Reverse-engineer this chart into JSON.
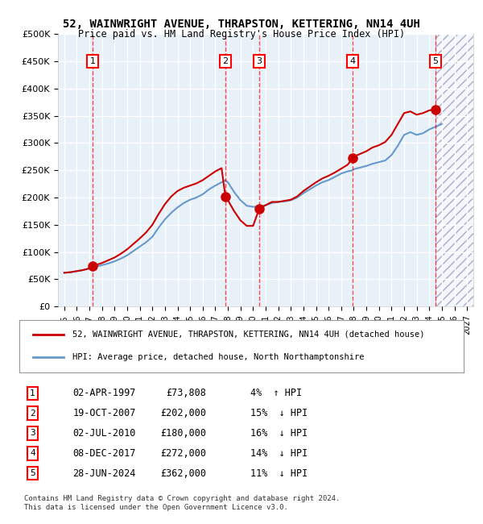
{
  "title": "52, WAINWRIGHT AVENUE, THRAPSTON, KETTERING, NN14 4UH",
  "subtitle": "Price paid vs. HM Land Registry's House Price Index (HPI)",
  "ylabel": "",
  "xlabel": "",
  "ylim": [
    0,
    500000
  ],
  "yticks": [
    0,
    50000,
    100000,
    150000,
    200000,
    250000,
    300000,
    350000,
    400000,
    450000,
    500000
  ],
  "ytick_labels": [
    "£0",
    "£50K",
    "£100K",
    "£150K",
    "£200K",
    "£250K",
    "£300K",
    "£350K",
    "£400K",
    "£450K",
    "£500K"
  ],
  "xlim_start": 1994.5,
  "xlim_end": 2027.5,
  "hpi_color": "#6699cc",
  "price_color": "#cc0000",
  "background_color": "#e8f0f8",
  "grid_color": "#ffffff",
  "transactions": [
    {
      "num": 1,
      "date": "02-APR-1997",
      "year": 1997.25,
      "price": 73808,
      "pct": "4%",
      "dir": "↑"
    },
    {
      "num": 2,
      "date": "19-OCT-2007",
      "year": 2007.8,
      "price": 202000,
      "pct": "15%",
      "dir": "↓"
    },
    {
      "num": 3,
      "date": "02-JUL-2010",
      "year": 2010.5,
      "price": 180000,
      "pct": "16%",
      "dir": "↓"
    },
    {
      "num": 4,
      "date": "08-DEC-2017",
      "year": 2017.92,
      "price": 272000,
      "pct": "14%",
      "dir": "↓"
    },
    {
      "num": 5,
      "date": "28-JUN-2024",
      "year": 2024.5,
      "price": 362000,
      "pct": "11%",
      "dir": "↓"
    }
  ],
  "legend_line1": "52, WAINWRIGHT AVENUE, THRAPSTON, KETTERING, NN14 4UH (detached house)",
  "legend_line2": "HPI: Average price, detached house, North Northamptonshire",
  "footer": "Contains HM Land Registry data © Crown copyright and database right 2024.\nThis data is licensed under the Open Government Licence v3.0.",
  "hpi_data_x": [
    1995.0,
    1995.5,
    1996.0,
    1996.5,
    1997.0,
    1997.25,
    1997.5,
    1998.0,
    1998.5,
    1999.0,
    1999.5,
    2000.0,
    2000.5,
    2001.0,
    2001.5,
    2002.0,
    2002.5,
    2003.0,
    2003.5,
    2004.0,
    2004.5,
    2005.0,
    2005.5,
    2006.0,
    2006.5,
    2007.0,
    2007.5,
    2007.8,
    2008.0,
    2008.5,
    2009.0,
    2009.5,
    2010.0,
    2010.5,
    2011.0,
    2011.5,
    2012.0,
    2012.5,
    2013.0,
    2013.5,
    2014.0,
    2014.5,
    2015.0,
    2015.5,
    2016.0,
    2016.5,
    2017.0,
    2017.5,
    2017.92,
    2018.0,
    2018.5,
    2019.0,
    2019.5,
    2020.0,
    2020.5,
    2021.0,
    2021.5,
    2022.0,
    2022.5,
    2023.0,
    2023.5,
    2024.0,
    2024.5,
    2025.0
  ],
  "hpi_data_y": [
    62000,
    63000,
    65000,
    67000,
    70000,
    71000,
    73000,
    76000,
    79000,
    83000,
    88000,
    94000,
    102000,
    110000,
    118000,
    128000,
    145000,
    160000,
    172000,
    182000,
    190000,
    196000,
    200000,
    206000,
    215000,
    222000,
    228000,
    232000,
    228000,
    210000,
    195000,
    185000,
    183000,
    183000,
    186000,
    190000,
    192000,
    193000,
    195000,
    200000,
    208000,
    215000,
    222000,
    228000,
    232000,
    238000,
    244000,
    248000,
    250000,
    252000,
    255000,
    258000,
    262000,
    265000,
    268000,
    278000,
    295000,
    315000,
    320000,
    315000,
    318000,
    325000,
    330000,
    335000
  ],
  "price_data_x": [
    1995.0,
    1995.5,
    1996.0,
    1996.5,
    1997.0,
    1997.25,
    1997.5,
    1998.0,
    1998.5,
    1999.0,
    1999.5,
    2000.0,
    2000.5,
    2001.0,
    2001.5,
    2002.0,
    2002.5,
    2003.0,
    2003.5,
    2004.0,
    2004.5,
    2005.0,
    2005.5,
    2006.0,
    2006.5,
    2007.0,
    2007.5,
    2007.8,
    2008.0,
    2008.5,
    2009.0,
    2009.5,
    2010.0,
    2010.5,
    2011.0,
    2011.5,
    2012.0,
    2012.5,
    2013.0,
    2013.5,
    2014.0,
    2014.5,
    2015.0,
    2015.5,
    2016.0,
    2016.5,
    2017.0,
    2017.5,
    2017.92,
    2018.0,
    2018.5,
    2019.0,
    2019.5,
    2020.0,
    2020.5,
    2021.0,
    2021.5,
    2022.0,
    2022.5,
    2023.0,
    2023.5,
    2024.0,
    2024.5
  ],
  "price_data_y": [
    62000,
    63000,
    65000,
    67000,
    70000,
    73808,
    76000,
    80000,
    85000,
    90000,
    97000,
    105000,
    115000,
    125000,
    136000,
    150000,
    170000,
    188000,
    202000,
    212000,
    218000,
    222000,
    226000,
    232000,
    240000,
    248000,
    254000,
    202000,
    195000,
    175000,
    158000,
    148000,
    148000,
    180000,
    186000,
    192000,
    192000,
    194000,
    196000,
    202000,
    212000,
    220000,
    228000,
    235000,
    240000,
    246000,
    253000,
    260000,
    272000,
    275000,
    280000,
    285000,
    292000,
    296000,
    302000,
    315000,
    335000,
    355000,
    358000,
    352000,
    355000,
    360000,
    362000
  ]
}
